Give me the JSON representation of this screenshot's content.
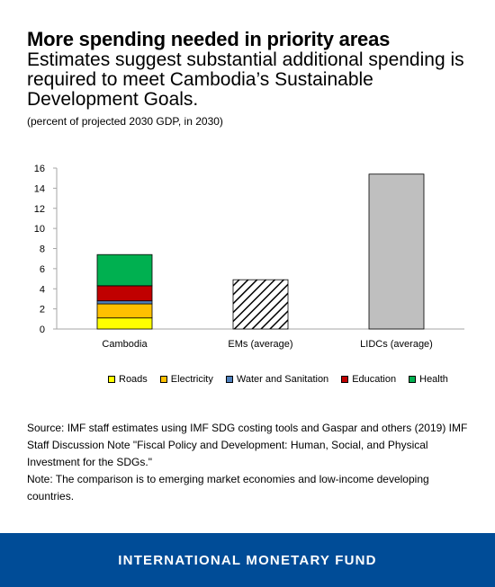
{
  "header": {
    "title": "More spending needed in priority areas",
    "subtitle": "Estimates suggest substantial additional spending is required to meet Cambodia’s Sustainable Development Goals.",
    "units": "(percent of projected 2030 GDP, in 2030)"
  },
  "chart_data": {
    "type": "bar",
    "stacked": true,
    "categories": [
      "Cambodia",
      "EMs (average)",
      "LIDCs (average)"
    ],
    "ylim": [
      0,
      16
    ],
    "yticks": [
      0,
      2,
      4,
      6,
      8,
      10,
      12,
      14,
      16
    ],
    "grid": false,
    "legend_position": "bottom",
    "series": [
      {
        "name": "Roads",
        "color": "#ffff00",
        "values": [
          1.1,
          null,
          null
        ]
      },
      {
        "name": "Electricity",
        "color": "#ffc000",
        "values": [
          1.4,
          null,
          null
        ]
      },
      {
        "name": "Water and Sanitation",
        "color": "#4f81bd",
        "values": [
          0.3,
          null,
          null
        ]
      },
      {
        "name": "Education",
        "color": "#c00000",
        "values": [
          1.5,
          null,
          null
        ]
      },
      {
        "name": "Health",
        "color": "#00b050",
        "values": [
          3.1,
          null,
          null
        ]
      }
    ],
    "totals": [
      {
        "category": "EMs (average)",
        "value": 4.9,
        "fill": "hatched"
      },
      {
        "category": "LIDCs (average)",
        "value": 15.4,
        "fill": "#bfbfbf"
      }
    ]
  },
  "source": {
    "line1": "Source: IMF staff estimates using IMF SDG costing tools and Gaspar and others (2019) IMF Staff Discussion Note \"Fiscal Policy and Development: Human, Social, and Physical Investment for the SDGs.\"",
    "line2": "Note: The comparison is to emerging market economies and low-income developing countries."
  },
  "footer": {
    "label": "INTERNATIONAL MONETARY FUND",
    "color": "#004c97"
  }
}
